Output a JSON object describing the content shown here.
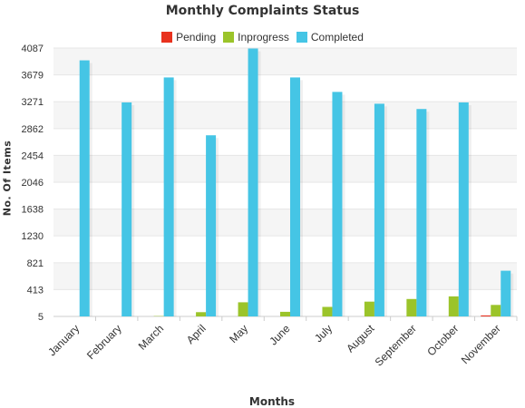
{
  "chart_data": {
    "type": "bar",
    "title": "Monthly Complaints Status",
    "xlabel": "Months",
    "ylabel": "No. Of Items",
    "categories": [
      "January",
      "February",
      "March",
      "April",
      "May",
      "June",
      "July",
      "August",
      "September",
      "October",
      "November"
    ],
    "y_ticks": [
      "5",
      "413",
      "821",
      "1230",
      "1638",
      "2046",
      "2454",
      "2862",
      "3271",
      "3679",
      "4087"
    ],
    "ylim": [
      5,
      4087
    ],
    "legend_position": "top-center",
    "grid": true,
    "series": [
      {
        "name": "Pending",
        "color": "#e8321e",
        "values": [
          0,
          0,
          0,
          0,
          0,
          0,
          0,
          0,
          0,
          0,
          20
        ]
      },
      {
        "name": "Inprogress",
        "color": "#9bc42a",
        "values": [
          0,
          0,
          10,
          70,
          220,
          75,
          150,
          230,
          270,
          310,
          180
        ]
      },
      {
        "name": "Completed",
        "color": "#45c5e5",
        "values": [
          3900,
          3260,
          3640,
          2760,
          4080,
          3640,
          3420,
          3240,
          3160,
          3260,
          700
        ]
      }
    ]
  }
}
